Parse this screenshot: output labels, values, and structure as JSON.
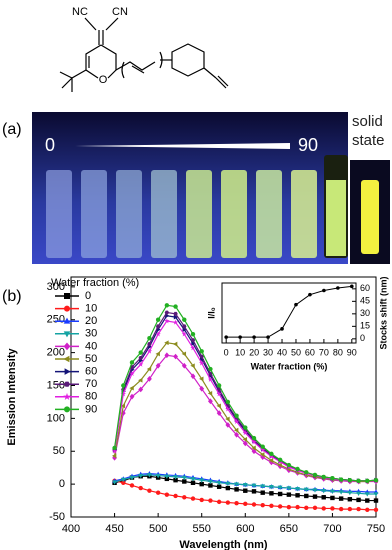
{
  "figure": {
    "structure_labels": [
      "NC",
      "CN",
      "O"
    ],
    "panel_a_label": "(a)",
    "photo_start": "0",
    "photo_end": "90",
    "solid_label": "solid state",
    "panel_b_label": "(b)"
  },
  "chart_data": [
    {
      "type": "line",
      "xlabel": "Wavelength (nm)",
      "ylabel": "Emission Intensity",
      "legend_title": "Water fraction (%)",
      "xlim": [
        400,
        750
      ],
      "xticks": [
        400,
        450,
        500,
        550,
        600,
        650,
        700,
        750
      ],
      "ylim": [
        -50,
        315
      ],
      "yticks": [
        -50,
        0,
        50,
        100,
        150,
        200,
        250,
        300
      ],
      "x": [
        450,
        460,
        470,
        480,
        490,
        500,
        510,
        520,
        530,
        540,
        550,
        560,
        570,
        580,
        590,
        600,
        610,
        620,
        630,
        640,
        650,
        660,
        670,
        680,
        690,
        700,
        710,
        720,
        730,
        740,
        750
      ],
      "series": [
        {
          "name": "0",
          "color": "#000000",
          "marker": "square",
          "values": [
            2,
            5,
            10,
            12,
            12,
            10,
            8,
            6,
            4,
            2,
            0,
            -2,
            -4,
            -6,
            -8,
            -10,
            -11,
            -13,
            -14,
            -15,
            -16,
            -17,
            -18,
            -19,
            -20,
            -21,
            -22,
            -23,
            -24,
            -25,
            -25
          ]
        },
        {
          "name": "10",
          "color": "#ff1a1a",
          "marker": "circle",
          "values": [
            5,
            2,
            -2,
            -6,
            -10,
            -13,
            -16,
            -18,
            -20,
            -22,
            -24,
            -25,
            -27,
            -28,
            -29,
            -30,
            -31,
            -32,
            -33,
            -34,
            -35,
            -35,
            -36,
            -36,
            -37,
            -37,
            -38,
            -38,
            -38,
            -39,
            -39
          ]
        },
        {
          "name": "20",
          "color": "#1a3cff",
          "marker": "triangle-up",
          "values": [
            5,
            8,
            12,
            15,
            16,
            15,
            14,
            13,
            12,
            10,
            8,
            6,
            4,
            2,
            0,
            -1,
            -2,
            -3,
            -4,
            -5,
            -6,
            -7,
            -8,
            -8,
            -9,
            -10,
            -10,
            -11,
            -11,
            -12,
            -12
          ]
        },
        {
          "name": "30",
          "color": "#14a3a3",
          "marker": "triangle-down",
          "values": [
            3,
            7,
            10,
            13,
            14,
            13,
            12,
            11,
            10,
            8,
            6,
            4,
            2,
            1,
            0,
            -1,
            -2,
            -3,
            -4,
            -5,
            -6,
            -7,
            -8,
            -9,
            -10,
            -11,
            -12,
            -13,
            -14,
            -15,
            -15
          ]
        },
        {
          "name": "40",
          "color": "#d021c8",
          "marker": "diamond",
          "values": [
            40,
            108,
            133,
            144,
            160,
            180,
            196,
            194,
            180,
            164,
            145,
            126,
            108,
            90,
            75,
            62,
            50,
            41,
            33,
            27,
            21,
            17,
            13,
            10,
            8,
            6,
            5,
            4,
            4,
            4,
            4
          ]
        },
        {
          "name": "50",
          "color": "#8c8c1e",
          "marker": "triangle-left",
          "values": [
            43,
            119,
            146,
            158,
            175,
            198,
            215,
            213,
            198,
            180,
            160,
            138,
            119,
            99,
            82,
            68,
            55,
            45,
            36,
            29,
            23,
            18,
            14,
            11,
            9,
            7,
            6,
            5,
            4,
            4,
            5
          ]
        },
        {
          "name": "60",
          "color": "#141478",
          "marker": "triangle-right",
          "values": [
            52,
            141,
            174,
            188,
            209,
            235,
            256,
            254,
            235,
            214,
            190,
            165,
            141,
            118,
            98,
            81,
            66,
            54,
            43,
            35,
            27,
            22,
            17,
            13,
            10,
            8,
            7,
            6,
            5,
            5,
            6
          ]
        },
        {
          "name": "70",
          "color": "#5a1a78",
          "marker": "hexagon",
          "values": [
            53,
            144,
            178,
            192,
            213,
            240,
            261,
            259,
            240,
            219,
            194,
            168,
            144,
            120,
            100,
            83,
            67,
            55,
            44,
            36,
            28,
            22,
            17,
            13,
            11,
            9,
            7,
            6,
            5,
            5,
            6
          ]
        },
        {
          "name": "80",
          "color": "#e11ee1",
          "marker": "star",
          "values": [
            50,
            137,
            168,
            182,
            202,
            228,
            248,
            246,
            228,
            207,
            184,
            159,
            137,
            114,
            95,
            78,
            64,
            52,
            42,
            34,
            26,
            21,
            16,
            13,
            10,
            8,
            6,
            5,
            5,
            5,
            5
          ]
        },
        {
          "name": "90",
          "color": "#22b022",
          "marker": "circle",
          "values": [
            55,
            150,
            185,
            200,
            222,
            250,
            272,
            270,
            250,
            228,
            202,
            175,
            150,
            125,
            104,
            86,
            70,
            57,
            46,
            37,
            29,
            23,
            18,
            14,
            11,
            9,
            7,
            6,
            5,
            5,
            6
          ]
        }
      ]
    },
    {
      "type": "line",
      "xlabel": "Water fraction (%)",
      "ylabel": "I/I₀",
      "y2label": "Stocks shift (nm)",
      "xlim": [
        -3,
        93
      ],
      "xticks": [
        0,
        10,
        20,
        30,
        40,
        50,
        60,
        70,
        80,
        90
      ],
      "y2lim": [
        -5,
        67
      ],
      "y2ticks": [
        0,
        15,
        30,
        45,
        60
      ],
      "x": [
        0,
        10,
        20,
        30,
        40,
        50,
        60,
        70,
        80,
        90
      ],
      "series": [
        {
          "color": "#000000",
          "axis": "y2",
          "values": [
            2,
            2,
            2,
            2,
            12,
            41,
            53,
            58,
            61,
            63
          ]
        }
      ]
    }
  ]
}
